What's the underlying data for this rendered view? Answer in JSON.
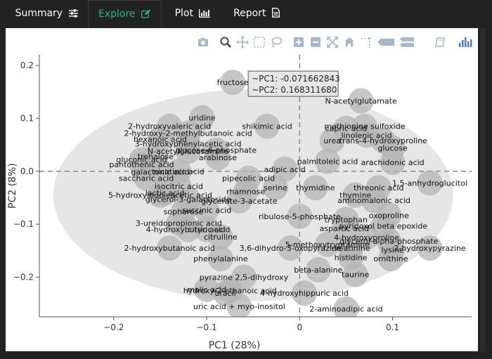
{
  "tabs": [
    {
      "label": "Summary",
      "icon": "sliders-icon",
      "active": false
    },
    {
      "label": "Explore",
      "icon": "edit-icon",
      "active": true
    },
    {
      "label": "Plot",
      "icon": "bar-chart-icon",
      "active": false
    },
    {
      "label": "Report",
      "icon": "document-icon",
      "active": false
    }
  ],
  "toolbar": [
    "camera-icon",
    "zoom-icon",
    "pan-icon",
    "box-select-icon",
    "lasso-icon",
    "zoom-in-icon",
    "zoom-out-icon",
    "autoscale-icon",
    "reset-axes-icon",
    "spike-lines-icon",
    "hover-closest-icon",
    "hover-compare-icon",
    "plotly-logo-icon"
  ],
  "tooltip": {
    "line1": "~PC1: -0.071662843",
    "line2": "~PC2: 0.168311680"
  },
  "colors": {
    "accent": "#2ab27b",
    "point": "#b4b4b4",
    "ellipse": "#e6e6e6",
    "toolbar": "#a9b7cc",
    "plotly": "#447adb"
  },
  "chart_data": {
    "type": "scatter",
    "title": "",
    "xlabel": "PC1 (28%)",
    "ylabel": "PC2 (8%)",
    "xlim": [
      -0.28,
      0.185
    ],
    "ylim": [
      -0.275,
      0.22
    ],
    "xticks": [
      -0.2,
      -0.1,
      0,
      0.1
    ],
    "xtick_labels": [
      "−0.2",
      "−0.1",
      "0",
      "0.1"
    ],
    "yticks": [
      -0.2,
      -0.1,
      0,
      0.1,
      0.2
    ],
    "ytick_labels": [
      "−0.2",
      "−0.1",
      "0.0",
      "0.1",
      "0.2"
    ],
    "grid": false,
    "zero_lines": true,
    "ellipse": {
      "cx": -0.05,
      "cy": -0.045,
      "rx": 0.215,
      "ry": 0.2
    },
    "points": [
      {
        "label": "fructose",
        "x": -0.072,
        "y": 0.168
      },
      {
        "label": "N-acetylglutamate",
        "x": 0.066,
        "y": 0.133
      },
      {
        "label": "uridine",
        "x": -0.105,
        "y": 0.101
      },
      {
        "label": "shikimic acid",
        "x": -0.035,
        "y": 0.085
      },
      {
        "label": "methionine sulfoxide",
        "x": 0.07,
        "y": 0.085
      },
      {
        "label": "2-hydroxyvaleric acid",
        "x": -0.14,
        "y": 0.085
      },
      {
        "label": "linolenic acid",
        "x": 0.072,
        "y": 0.068
      },
      {
        "label": "2-hydroxy-2-methylbutanoic acid",
        "x": -0.12,
        "y": 0.072
      },
      {
        "label": "capric acid",
        "x": 0.05,
        "y": 0.081
      },
      {
        "label": "hexanoic acid",
        "x": -0.15,
        "y": 0.061
      },
      {
        "label": "3-hydroxyphenylacetic acid",
        "x": -0.12,
        "y": 0.052
      },
      {
        "label": "urea",
        "x": 0.035,
        "y": 0.058
      },
      {
        "label": "trans-4-hydroxyproline",
        "x": 0.09,
        "y": 0.058
      },
      {
        "label": "glucose",
        "x": 0.1,
        "y": 0.044
      },
      {
        "label": "arabinose",
        "x": -0.088,
        "y": 0.026
      },
      {
        "label": "N-acetylglucosamine",
        "x": -0.12,
        "y": 0.038
      },
      {
        "label": "trehalose",
        "x": -0.155,
        "y": 0.028
      },
      {
        "label": "glucose-6-phosphate",
        "x": -0.09,
        "y": 0.04
      },
      {
        "label": "gluconic acid",
        "x": -0.17,
        "y": 0.022
      },
      {
        "label": "palmitoleic acid",
        "x": 0.03,
        "y": 0.019
      },
      {
        "label": "arachidonic acid",
        "x": 0.1,
        "y": 0.017
      },
      {
        "label": "pantothenic acid",
        "x": -0.17,
        "y": 0.013
      },
      {
        "label": "adipic acid",
        "x": -0.016,
        "y": 0.004
      },
      {
        "label": "galactonic acid",
        "x": -0.15,
        "y": -0.001
      },
      {
        "label": "nicotinic acid",
        "x": -0.13,
        "y": 0.0
      },
      {
        "label": "threonic acid",
        "x": 0.085,
        "y": -0.031
      },
      {
        "label": "1,5-anhydroglucitol",
        "x": 0.14,
        "y": -0.022
      },
      {
        "label": "saccharic acid",
        "x": -0.165,
        "y": -0.013
      },
      {
        "label": "pipecolic acid",
        "x": -0.055,
        "y": -0.013
      },
      {
        "label": "serine",
        "x": -0.026,
        "y": -0.031
      },
      {
        "label": "thymidine",
        "x": 0.017,
        "y": -0.031
      },
      {
        "label": "isocitric acid",
        "x": -0.13,
        "y": -0.028
      },
      {
        "label": "thymine",
        "x": 0.06,
        "y": -0.045
      },
      {
        "label": "rhamnose",
        "x": -0.058,
        "y": -0.038
      },
      {
        "label": "5-hydroxyindoleacetic acid",
        "x": -0.15,
        "y": -0.045
      },
      {
        "label": "lactic acid",
        "x": -0.145,
        "y": -0.041
      },
      {
        "label": "aminomalonic acid",
        "x": 0.08,
        "y": -0.055
      },
      {
        "label": "glycerol-3-galactoside",
        "x": -0.12,
        "y": -0.053
      },
      {
        "label": "glycerate-3-acetate",
        "x": -0.065,
        "y": -0.056
      },
      {
        "label": "sophorose",
        "x": -0.125,
        "y": -0.076
      },
      {
        "label": "succinic acid",
        "x": -0.1,
        "y": -0.073
      },
      {
        "label": "oxoproline",
        "x": 0.096,
        "y": -0.083
      },
      {
        "label": "tryptophan",
        "x": 0.05,
        "y": -0.091
      },
      {
        "label": "ribulose-5-phosphate",
        "x": 0.0,
        "y": -0.085
      },
      {
        "label": "3-ureidopropionic acid",
        "x": -0.13,
        "y": -0.098
      },
      {
        "label": "aspartic acid",
        "x": 0.048,
        "y": -0.108
      },
      {
        "label": "pyridoxol beta epoxide",
        "x": 0.09,
        "y": -0.103
      },
      {
        "label": "4-hydroxybutyric acid",
        "x": -0.12,
        "y": -0.11
      },
      {
        "label": "citric acid",
        "x": -0.1,
        "y": -0.11
      },
      {
        "label": "4-hydroxyproline",
        "x": 0.072,
        "y": -0.125
      },
      {
        "label": "glycerol-alpha-phosphate",
        "x": 0.096,
        "y": -0.132
      },
      {
        "label": "5-methoxytryptamine",
        "x": 0.03,
        "y": -0.138
      },
      {
        "label": "2-hydroxybutanoic acid",
        "x": -0.14,
        "y": -0.145
      },
      {
        "label": "citrulline",
        "x": -0.085,
        "y": -0.124
      },
      {
        "label": "3,6-dihydro-3-oxopyrazine",
        "x": -0.01,
        "y": -0.145
      },
      {
        "label": "creatinine",
        "x": 0.055,
        "y": -0.145
      },
      {
        "label": "lysine",
        "x": 0.1,
        "y": -0.148
      },
      {
        "label": "2-hydroxypyrazine",
        "x": 0.14,
        "y": -0.145
      },
      {
        "label": "phenylalanine",
        "x": -0.085,
        "y": -0.165
      },
      {
        "label": "histidine",
        "x": 0.055,
        "y": -0.163
      },
      {
        "label": "ornithine",
        "x": 0.098,
        "y": -0.165
      },
      {
        "label": "beta-alanine",
        "x": 0.02,
        "y": -0.186
      },
      {
        "label": "taurine",
        "x": 0.06,
        "y": -0.195
      },
      {
        "label": "pyrazine 2,5-dihydroxy",
        "x": -0.06,
        "y": -0.2
      },
      {
        "label": "malic acid",
        "x": -0.1,
        "y": -0.223
      },
      {
        "label": "hydroxy-2-ethanoic acid",
        "x": -0.075,
        "y": -0.225
      },
      {
        "label": "uracil",
        "x": -0.08,
        "y": -0.23
      },
      {
        "label": "4-hydroxyhippuric acid",
        "x": 0.005,
        "y": -0.23
      },
      {
        "label": "uric acid + myo-inositol",
        "x": -0.065,
        "y": -0.255
      },
      {
        "label": "2-aminoadipic acid",
        "x": 0.05,
        "y": -0.26
      }
    ]
  }
}
